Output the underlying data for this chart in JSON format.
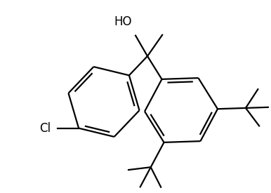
{
  "background_color": "#ffffff",
  "line_color": "#000000",
  "line_width": 1.6,
  "text_color": "#000000",
  "figsize": [
    3.86,
    2.75
  ],
  "dpi": 100,
  "xlim": [
    0,
    386
  ],
  "ylim": [
    0,
    275
  ]
}
